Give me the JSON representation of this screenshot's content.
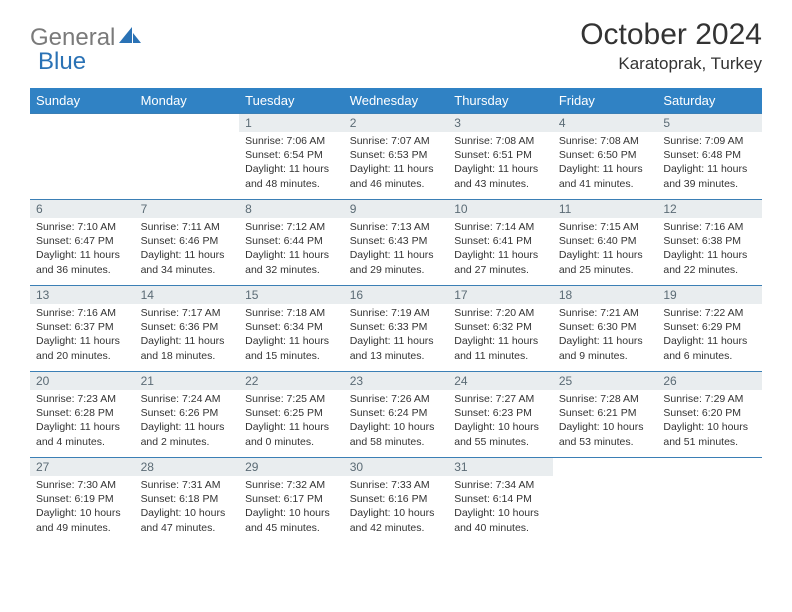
{
  "logo": {
    "part1": "General",
    "part2": "Blue"
  },
  "title": "October 2024",
  "location": "Karatoprak, Turkey",
  "colors": {
    "header_bg": "#3082c4",
    "header_text": "#ffffff",
    "border": "#3b7fb5",
    "daynum_bg": "#e9edef",
    "daynum_text": "#5b6b75",
    "body_text": "#333333",
    "logo_gray": "#7a7a7a",
    "logo_blue": "#2a72b5"
  },
  "weekdays": [
    "Sunday",
    "Monday",
    "Tuesday",
    "Wednesday",
    "Thursday",
    "Friday",
    "Saturday"
  ],
  "weeks": [
    [
      {
        "empty": true
      },
      {
        "empty": true
      },
      {
        "num": "1",
        "sunrise": "Sunrise: 7:06 AM",
        "sunset": "Sunset: 6:54 PM",
        "daylight": "Daylight: 11 hours and 48 minutes."
      },
      {
        "num": "2",
        "sunrise": "Sunrise: 7:07 AM",
        "sunset": "Sunset: 6:53 PM",
        "daylight": "Daylight: 11 hours and 46 minutes."
      },
      {
        "num": "3",
        "sunrise": "Sunrise: 7:08 AM",
        "sunset": "Sunset: 6:51 PM",
        "daylight": "Daylight: 11 hours and 43 minutes."
      },
      {
        "num": "4",
        "sunrise": "Sunrise: 7:08 AM",
        "sunset": "Sunset: 6:50 PM",
        "daylight": "Daylight: 11 hours and 41 minutes."
      },
      {
        "num": "5",
        "sunrise": "Sunrise: 7:09 AM",
        "sunset": "Sunset: 6:48 PM",
        "daylight": "Daylight: 11 hours and 39 minutes."
      }
    ],
    [
      {
        "num": "6",
        "sunrise": "Sunrise: 7:10 AM",
        "sunset": "Sunset: 6:47 PM",
        "daylight": "Daylight: 11 hours and 36 minutes."
      },
      {
        "num": "7",
        "sunrise": "Sunrise: 7:11 AM",
        "sunset": "Sunset: 6:46 PM",
        "daylight": "Daylight: 11 hours and 34 minutes."
      },
      {
        "num": "8",
        "sunrise": "Sunrise: 7:12 AM",
        "sunset": "Sunset: 6:44 PM",
        "daylight": "Daylight: 11 hours and 32 minutes."
      },
      {
        "num": "9",
        "sunrise": "Sunrise: 7:13 AM",
        "sunset": "Sunset: 6:43 PM",
        "daylight": "Daylight: 11 hours and 29 minutes."
      },
      {
        "num": "10",
        "sunrise": "Sunrise: 7:14 AM",
        "sunset": "Sunset: 6:41 PM",
        "daylight": "Daylight: 11 hours and 27 minutes."
      },
      {
        "num": "11",
        "sunrise": "Sunrise: 7:15 AM",
        "sunset": "Sunset: 6:40 PM",
        "daylight": "Daylight: 11 hours and 25 minutes."
      },
      {
        "num": "12",
        "sunrise": "Sunrise: 7:16 AM",
        "sunset": "Sunset: 6:38 PM",
        "daylight": "Daylight: 11 hours and 22 minutes."
      }
    ],
    [
      {
        "num": "13",
        "sunrise": "Sunrise: 7:16 AM",
        "sunset": "Sunset: 6:37 PM",
        "daylight": "Daylight: 11 hours and 20 minutes."
      },
      {
        "num": "14",
        "sunrise": "Sunrise: 7:17 AM",
        "sunset": "Sunset: 6:36 PM",
        "daylight": "Daylight: 11 hours and 18 minutes."
      },
      {
        "num": "15",
        "sunrise": "Sunrise: 7:18 AM",
        "sunset": "Sunset: 6:34 PM",
        "daylight": "Daylight: 11 hours and 15 minutes."
      },
      {
        "num": "16",
        "sunrise": "Sunrise: 7:19 AM",
        "sunset": "Sunset: 6:33 PM",
        "daylight": "Daylight: 11 hours and 13 minutes."
      },
      {
        "num": "17",
        "sunrise": "Sunrise: 7:20 AM",
        "sunset": "Sunset: 6:32 PM",
        "daylight": "Daylight: 11 hours and 11 minutes."
      },
      {
        "num": "18",
        "sunrise": "Sunrise: 7:21 AM",
        "sunset": "Sunset: 6:30 PM",
        "daylight": "Daylight: 11 hours and 9 minutes."
      },
      {
        "num": "19",
        "sunrise": "Sunrise: 7:22 AM",
        "sunset": "Sunset: 6:29 PM",
        "daylight": "Daylight: 11 hours and 6 minutes."
      }
    ],
    [
      {
        "num": "20",
        "sunrise": "Sunrise: 7:23 AM",
        "sunset": "Sunset: 6:28 PM",
        "daylight": "Daylight: 11 hours and 4 minutes."
      },
      {
        "num": "21",
        "sunrise": "Sunrise: 7:24 AM",
        "sunset": "Sunset: 6:26 PM",
        "daylight": "Daylight: 11 hours and 2 minutes."
      },
      {
        "num": "22",
        "sunrise": "Sunrise: 7:25 AM",
        "sunset": "Sunset: 6:25 PM",
        "daylight": "Daylight: 11 hours and 0 minutes."
      },
      {
        "num": "23",
        "sunrise": "Sunrise: 7:26 AM",
        "sunset": "Sunset: 6:24 PM",
        "daylight": "Daylight: 10 hours and 58 minutes."
      },
      {
        "num": "24",
        "sunrise": "Sunrise: 7:27 AM",
        "sunset": "Sunset: 6:23 PM",
        "daylight": "Daylight: 10 hours and 55 minutes."
      },
      {
        "num": "25",
        "sunrise": "Sunrise: 7:28 AM",
        "sunset": "Sunset: 6:21 PM",
        "daylight": "Daylight: 10 hours and 53 minutes."
      },
      {
        "num": "26",
        "sunrise": "Sunrise: 7:29 AM",
        "sunset": "Sunset: 6:20 PM",
        "daylight": "Daylight: 10 hours and 51 minutes."
      }
    ],
    [
      {
        "num": "27",
        "sunrise": "Sunrise: 7:30 AM",
        "sunset": "Sunset: 6:19 PM",
        "daylight": "Daylight: 10 hours and 49 minutes."
      },
      {
        "num": "28",
        "sunrise": "Sunrise: 7:31 AM",
        "sunset": "Sunset: 6:18 PM",
        "daylight": "Daylight: 10 hours and 47 minutes."
      },
      {
        "num": "29",
        "sunrise": "Sunrise: 7:32 AM",
        "sunset": "Sunset: 6:17 PM",
        "daylight": "Daylight: 10 hours and 45 minutes."
      },
      {
        "num": "30",
        "sunrise": "Sunrise: 7:33 AM",
        "sunset": "Sunset: 6:16 PM",
        "daylight": "Daylight: 10 hours and 42 minutes."
      },
      {
        "num": "31",
        "sunrise": "Sunrise: 7:34 AM",
        "sunset": "Sunset: 6:14 PM",
        "daylight": "Daylight: 10 hours and 40 minutes."
      },
      {
        "empty": true
      },
      {
        "empty": true
      }
    ]
  ]
}
